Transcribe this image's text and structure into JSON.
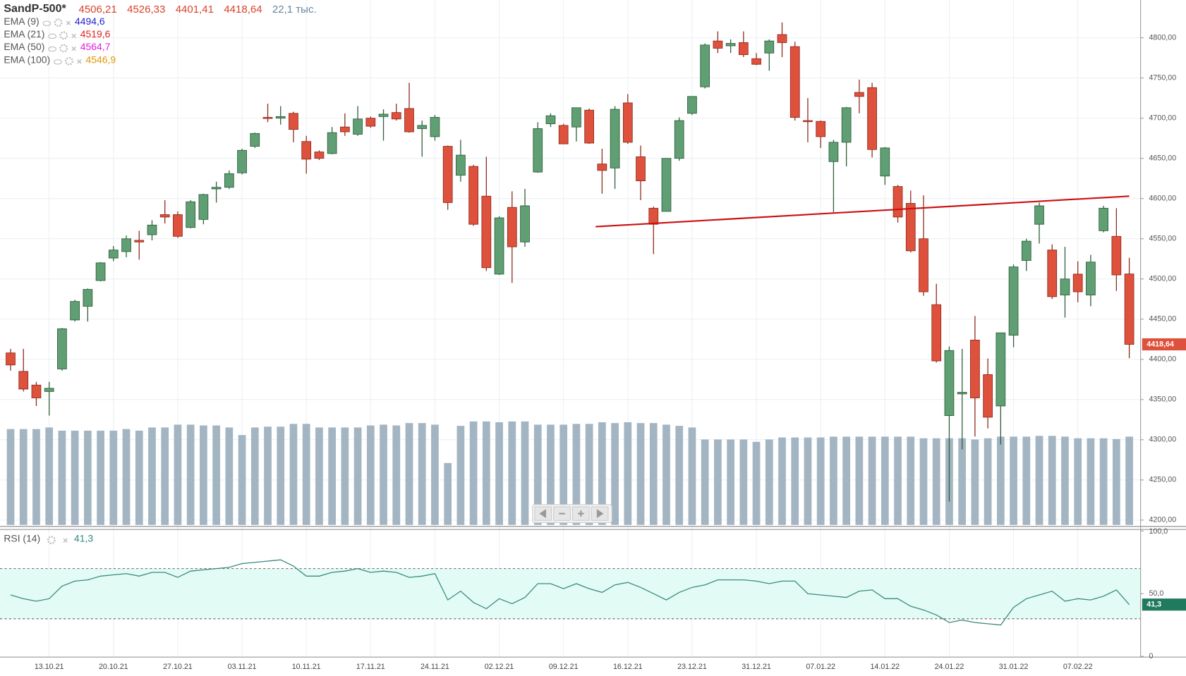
{
  "chart_data": [
    {
      "type": "candlestick",
      "title": "SandP-500*",
      "ohlc_labels": [
        "4506,21",
        "4526,33",
        "4401,41",
        "4418,64"
      ],
      "volume_label": "22,1 тыс.",
      "indicators": [
        {
          "name": "EMA (9)",
          "label": "4494,6",
          "color": "#1f1fd0"
        },
        {
          "name": "EMA (21)",
          "label": "4519,6",
          "color": "#e0201e"
        },
        {
          "name": "EMA (50)",
          "label": "4564,7",
          "color": "#e01ee0"
        },
        {
          "name": "EMA (100)",
          "label": "4546,9",
          "color": "#e09a00"
        }
      ],
      "categories": [
        null,
        null,
        null,
        "13.10.21",
        null,
        null,
        null,
        null,
        "20.10.21",
        null,
        null,
        null,
        null,
        "27.10.21",
        null,
        null,
        null,
        null,
        "03.11.21",
        null,
        null,
        null,
        null,
        "10.11.21",
        null,
        null,
        null,
        null,
        "17.11.21",
        null,
        null,
        null,
        null,
        "24.11.21",
        null,
        null,
        null,
        null,
        "02.12.21",
        null,
        null,
        null,
        null,
        "09.12.21",
        null,
        null,
        null,
        null,
        "16.12.21",
        null,
        null,
        null,
        null,
        "23.12.21",
        null,
        null,
        null,
        null,
        "31.12.21",
        null,
        null,
        null,
        null,
        "07.01.22",
        null,
        null,
        null,
        null,
        "14.01.22",
        null,
        null,
        null,
        null,
        "24.01.22",
        null,
        null,
        null,
        null,
        "31.01.22",
        null,
        null,
        null,
        null,
        "07.02.22",
        null,
        null,
        null,
        null
      ],
      "open": [
        4408,
        4385,
        4368,
        4360,
        4388,
        4449,
        4466,
        4498,
        4526,
        4534,
        4548,
        4555,
        4580,
        4580,
        4564,
        4574,
        4612,
        4614,
        4632,
        4665,
        4701,
        4700,
        4706,
        4671,
        4658,
        4656,
        4689,
        4680,
        4700,
        4702,
        4707,
        4712,
        4687,
        4677,
        4665,
        4629,
        4640,
        4603,
        4506,
        4589,
        4546,
        4633,
        4693,
        4691,
        4689,
        4710,
        4643,
        4638,
        4719,
        4652,
        4588,
        4584,
        4650,
        4706,
        4739,
        4796,
        4790,
        4794,
        4774,
        4781,
        4804,
        4789,
        4697,
        4696,
        4646,
        4670,
        4732,
        4738,
        4628,
        4615,
        4594,
        4550,
        4468,
        4330,
        4357,
        4424,
        4381,
        4342,
        4430,
        4523,
        4568,
        4536,
        4480,
        4506,
        4480,
        4560,
        4553,
        4506.21
      ],
      "high": [
        4413,
        4413,
        4372,
        4372,
        4439,
        4474,
        4488,
        4521,
        4541,
        4554,
        4560,
        4573,
        4598,
        4584,
        4598,
        4606,
        4621,
        4635,
        4662,
        4682,
        4718,
        4715,
        4708,
        4678,
        4660,
        4689,
        4706,
        4715,
        4702,
        4711,
        4718,
        4744,
        4697,
        4704,
        4666,
        4673,
        4642,
        4652,
        4578,
        4609,
        4612,
        4695,
        4706,
        4693,
        4713,
        4712,
        4662,
        4715,
        4730,
        4666,
        4590,
        4650,
        4701,
        4727,
        4793,
        4808,
        4798,
        4808,
        4781,
        4798,
        4819,
        4795,
        4725,
        4697,
        4673,
        4714,
        4748,
        4744,
        4664,
        4617,
        4610,
        4604,
        4494,
        4416,
        4413,
        4454,
        4401,
        4433,
        4518,
        4550,
        4595,
        4543,
        4540,
        4522,
        4530,
        4591,
        4588,
        4526.33
      ],
      "low": [
        4386,
        4360,
        4342,
        4330,
        4386,
        4447,
        4447,
        4497,
        4522,
        4527,
        4524,
        4548,
        4569,
        4551,
        4563,
        4568,
        4595,
        4612,
        4630,
        4663,
        4695,
        4692,
        4670,
        4631,
        4648,
        4655,
        4678,
        4678,
        4688,
        4672,
        4697,
        4682,
        4652,
        4672,
        4586,
        4621,
        4566,
        4510,
        4505,
        4495,
        4540,
        4632,
        4689,
        4668,
        4671,
        4668,
        4606,
        4612,
        4668,
        4598,
        4531,
        4584,
        4647,
        4704,
        4737,
        4781,
        4781,
        4776,
        4766,
        4759,
        4776,
        4697,
        4670,
        4663,
        4583,
        4640,
        4706,
        4651,
        4617,
        4570,
        4533,
        4479,
        4396,
        4223,
        4288,
        4304,
        4314,
        4294,
        4415,
        4510,
        4544,
        4475,
        4452,
        4471,
        4466,
        4558,
        4485,
        4401.41
      ],
      "close": [
        4393,
        4363,
        4352,
        4364,
        4438,
        4472,
        4487,
        4520,
        4536,
        4550,
        4546,
        4567,
        4577,
        4553,
        4596,
        4605,
        4614,
        4631,
        4660,
        4681,
        4700,
        4702,
        4686,
        4649,
        4650,
        4682,
        4683,
        4699,
        4690,
        4705,
        4699,
        4683,
        4691,
        4701,
        4595,
        4654,
        4568,
        4514,
        4576,
        4540,
        4591,
        4687,
        4703,
        4668,
        4713,
        4669,
        4635,
        4711,
        4670,
        4622,
        4568,
        4650,
        4697,
        4727,
        4791,
        4787,
        4793,
        4779,
        4767,
        4796,
        4794,
        4701,
        4696,
        4677,
        4670,
        4713,
        4727,
        4661,
        4663,
        4577,
        4535,
        4484,
        4398,
        4411,
        4359,
        4352,
        4328,
        4433,
        4515,
        4547,
        4591,
        4478,
        4500,
        4484,
        4521,
        4588,
        4505,
        4418.64
      ],
      "volume": [
        24.0,
        24.0,
        24.0,
        24.4,
        23.6,
        23.6,
        23.6,
        23.6,
        23.6,
        24.0,
        23.6,
        24.4,
        24.4,
        25.1,
        25.1,
        24.9,
        24.9,
        24.4,
        22.5,
        24.4,
        24.6,
        24.6,
        25.3,
        25.3,
        24.4,
        24.4,
        24.4,
        24.4,
        24.9,
        25.1,
        24.9,
        25.5,
        25.5,
        25.1,
        15.5,
        24.8,
        25.9,
        25.9,
        25.7,
        25.9,
        25.9,
        25.1,
        25.1,
        25.1,
        25.3,
        25.3,
        25.7,
        25.5,
        25.7,
        25.5,
        25.5,
        25.1,
        24.8,
        24.4,
        21.4,
        21.4,
        21.4,
        21.4,
        20.8,
        21.4,
        21.9,
        21.9,
        21.9,
        21.9,
        22.1,
        22.1,
        22.1,
        22.1,
        22.1,
        22.1,
        22.1,
        21.7,
        21.7,
        21.7,
        21.7,
        21.4,
        21.7,
        22.1,
        22.1,
        22.1,
        22.3,
        22.3,
        22.1,
        21.7,
        21.7,
        21.7,
        21.5,
        22.1
      ],
      "up_color": "#5f9f73",
      "down_color": "#de513c",
      "volume_color": "#a3b5c3",
      "trendline": {
        "from": [
          45.5,
          4565
        ],
        "to": [
          87,
          4603
        ],
        "color": "#cc1010"
      },
      "ylim": [
        4194,
        4847
      ],
      "yticks": [
        {
          "value": 4200,
          "label": "4200,00"
        },
        {
          "value": 4250,
          "label": "4250,00"
        },
        {
          "value": 4300,
          "label": "4300,00"
        },
        {
          "value": 4350,
          "label": "4350,00"
        },
        {
          "value": 4400,
          "label": "4400,00"
        },
        {
          "value": 4450,
          "label": "4450,00"
        },
        {
          "value": 4500,
          "label": "4500,00"
        },
        {
          "value": 4550,
          "label": "4550,00"
        },
        {
          "value": 4600,
          "label": "4600,00"
        },
        {
          "value": 4650,
          "label": "4650,00"
        },
        {
          "value": 4700,
          "label": "4700,00"
        },
        {
          "value": 4750,
          "label": "4750,00"
        },
        {
          "value": 4800,
          "label": "4800,00"
        }
      ],
      "grid": true
    },
    {
      "type": "line",
      "title": "RSI (14)",
      "value_label": "41,3",
      "color": "#3a8a80",
      "values": [
        49,
        46,
        44,
        46,
        56,
        60,
        61,
        64,
        65,
        66,
        64,
        67,
        67,
        63,
        68,
        69,
        70,
        71,
        74,
        75,
        76,
        77,
        72,
        64,
        64,
        67,
        68,
        70,
        67,
        68,
        67,
        63,
        64,
        66,
        45,
        52,
        43,
        38,
        46,
        42,
        47,
        58,
        58,
        54,
        58,
        54,
        51,
        57,
        59,
        55,
        50,
        45,
        51,
        55,
        57,
        61,
        61,
        61,
        60,
        58,
        60,
        60,
        50,
        49,
        48,
        47,
        52,
        53,
        46,
        46,
        40,
        37,
        33,
        27,
        29,
        27,
        26,
        25,
        39,
        46,
        49,
        52,
        44,
        46,
        45,
        48,
        53,
        41.3
      ],
      "levels": [
        30,
        70
      ],
      "band_color": "#e3fbf5",
      "ylim": [
        0,
        100
      ],
      "yticks": [
        0,
        {
          "value": 50,
          "label": "50,0"
        },
        {
          "value": 100,
          "label": "100,0"
        }
      ]
    }
  ]
}
